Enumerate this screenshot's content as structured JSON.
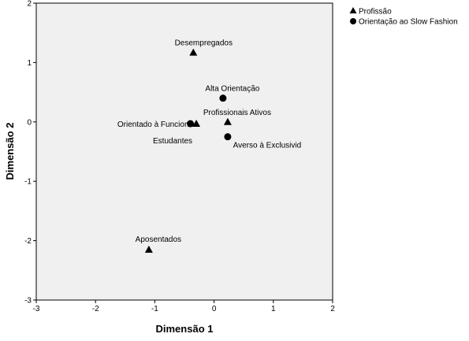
{
  "chart_data": {
    "type": "scatter",
    "xlabel": "Dimensão 1",
    "ylabel": "Dimensão 2",
    "xlim": [
      -3,
      2
    ],
    "ylim": [
      -3,
      2
    ],
    "x_ticks": [
      -3,
      -2,
      -1,
      0,
      1,
      2
    ],
    "y_ticks": [
      2,
      1,
      0,
      -1,
      -2,
      -3
    ],
    "grid": false,
    "plot_background": "#f0f0f0",
    "legend_position": "top-right",
    "series": [
      {
        "name": "Profissão",
        "marker": "triangle",
        "points": [
          {
            "label": "Desempregados",
            "x": -0.35,
            "y": 1.17
          },
          {
            "label": "Profissionais Ativos",
            "x": 0.23,
            "y": 0.0
          },
          {
            "label": "Estudantes",
            "x": -0.3,
            "y": -0.03
          },
          {
            "label": "Aposentados",
            "x": -1.1,
            "y": -2.15
          }
        ]
      },
      {
        "name": "Orientação ao Slow Fashion",
        "marker": "circle",
        "points": [
          {
            "label": "Alta Orientação",
            "x": 0.15,
            "y": 0.4
          },
          {
            "label": "Orientado à Funcion",
            "x": -0.4,
            "y": -0.03
          },
          {
            "label": "Averso à Exclusivid",
            "x": 0.23,
            "y": -0.25
          }
        ]
      }
    ]
  }
}
